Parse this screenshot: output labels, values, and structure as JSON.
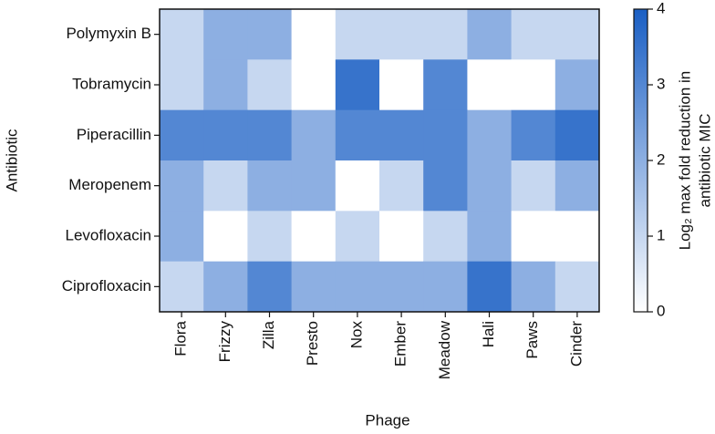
{
  "chart_data": {
    "type": "heatmap",
    "x_label": "Phage",
    "y_label": "Antibiotic",
    "colorbar_label": [
      "Log₂ max fold reduction in",
      "antibiotic MIC"
    ],
    "x": [
      "Flora",
      "Frizzy",
      "Zilla",
      "Presto",
      "Nox",
      "Ember",
      "Meadow",
      "Hali",
      "Paws",
      "Cinder"
    ],
    "y": [
      "Polymyxin B",
      "Tobramycin",
      "Piperacillin",
      "Meropenem",
      "Levofloxacin",
      "Ciprofloxacin"
    ],
    "z": [
      [
        1,
        2,
        2,
        0,
        1,
        1,
        1,
        2,
        1,
        1
      ],
      [
        1,
        2,
        1,
        0,
        3.5,
        0,
        3,
        0,
        0,
        2
      ],
      [
        3,
        3,
        3,
        2,
        3,
        3,
        3,
        2,
        3,
        3.5
      ],
      [
        2,
        1,
        2,
        2,
        0,
        1,
        3,
        2,
        1,
        2
      ],
      [
        2,
        0,
        1,
        0,
        1,
        0,
        1,
        2,
        0,
        0
      ],
      [
        1,
        2,
        3,
        2,
        2,
        2,
        2,
        3.5,
        2,
        1
      ]
    ],
    "colors": [
      "#ffffff",
      "#1a5fc4"
    ],
    "zlim": [
      0,
      4
    ],
    "zticks": [
      0,
      1,
      2,
      3,
      4
    ]
  }
}
